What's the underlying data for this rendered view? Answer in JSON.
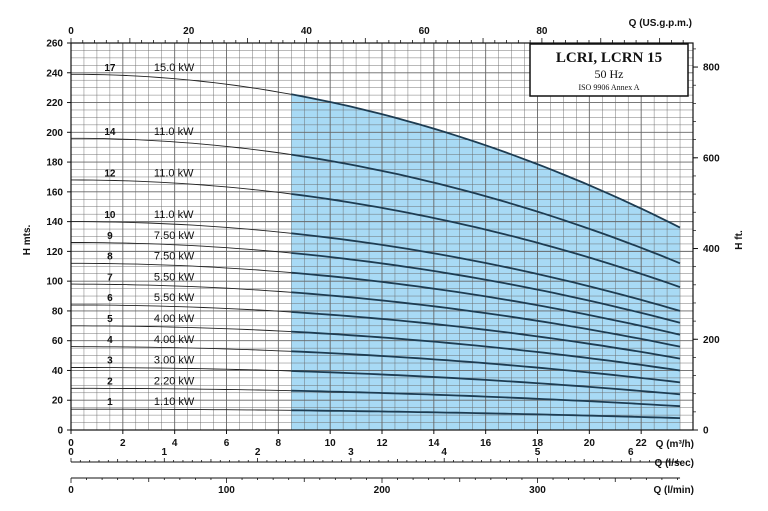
{
  "chart_data": {
    "type": "line",
    "title": "LCRI, LCRN 15",
    "subtitle": "50 Hz",
    "note": "ISO 9906 Annex A",
    "left_axis": {
      "label": "H mts.",
      "range": [
        0,
        260
      ],
      "ticks": [
        0,
        20,
        40,
        60,
        80,
        100,
        120,
        140,
        160,
        180,
        200,
        220,
        240,
        260
      ]
    },
    "right_axis": {
      "label": "H ft.",
      "ticks": [
        0,
        200,
        400,
        600,
        800
      ]
    },
    "bottom_axis": {
      "label": "Q (m³/h)",
      "range": [
        0,
        24
      ],
      "ticks": [
        0,
        2,
        4,
        6,
        8,
        10,
        12,
        14,
        16,
        18,
        20,
        22
      ]
    },
    "top_axis": {
      "label": "Q (US.g.p.m.)",
      "ticks": [
        0,
        20,
        40,
        60,
        80
      ]
    },
    "aux_axis_lsec": {
      "label": "Q (l/sec)",
      "ticks": [
        0,
        1,
        2,
        3,
        4,
        5,
        6
      ]
    },
    "aux_axis_lmin": {
      "label": "Q (l/min)",
      "ticks": [
        0,
        100,
        200,
        300
      ]
    },
    "working_range_q": [
      8.5,
      23.5
    ],
    "working_range_color": "#a8daf5",
    "grid_color": "#666666",
    "series": [
      {
        "stages": "1",
        "power": "1.10 kW",
        "h0": 14,
        "h_end": 8
      },
      {
        "stages": "2",
        "power": "2.20 kW",
        "h0": 28,
        "h_end": 16
      },
      {
        "stages": "3",
        "power": "3.00 kW",
        "h0": 42,
        "h_end": 24
      },
      {
        "stages": "4",
        "power": "4.00 kW",
        "h0": 56,
        "h_end": 32
      },
      {
        "stages": "5",
        "power": "4.00 kW",
        "h0": 70,
        "h_end": 40
      },
      {
        "stages": "6",
        "power": "5.50 kW",
        "h0": 84,
        "h_end": 48
      },
      {
        "stages": "7",
        "power": "5.50 kW",
        "h0": 98,
        "h_end": 56
      },
      {
        "stages": "8",
        "power": "7.50 kW",
        "h0": 112,
        "h_end": 64
      },
      {
        "stages": "9",
        "power": "7.50 kW",
        "h0": 126,
        "h_end": 72
      },
      {
        "stages": "10",
        "power": "11.0 kW",
        "h0": 140,
        "h_end": 80
      },
      {
        "stages": "12",
        "power": "11.0 kW",
        "h0": 168,
        "h_end": 96
      },
      {
        "stages": "14",
        "power": "11.0 kW",
        "h0": 196,
        "h_end": 112
      },
      {
        "stages": "17",
        "power": "15.0 kW",
        "h0": 239,
        "h_end": 136
      }
    ]
  }
}
